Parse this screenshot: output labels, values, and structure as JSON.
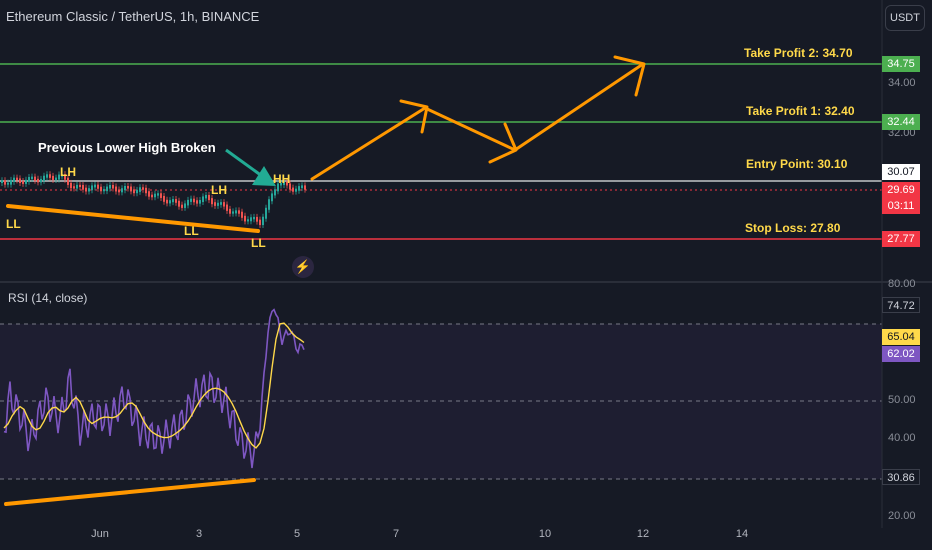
{
  "header": {
    "symbol_title": "Ethereum Classic / TetherUS, 1h, BINANCE",
    "currency_button": "USDT"
  },
  "annotations": {
    "previous_lower_high": "Previous Lower High Broken",
    "take_profit_2": "Take Profit 2: 34.70",
    "take_profit_1": "Take Profit 1: 32.40",
    "entry_point": "Entry Point: 30.10",
    "stop_loss": "Stop Loss: 27.80",
    "swings": [
      "LH",
      "LH",
      "HH",
      "LL",
      "LL",
      "LL"
    ]
  },
  "price_axis": {
    "ticks": [
      "34.00",
      "32.00"
    ],
    "tags": {
      "tp2": "34.75",
      "tp1": "32.44",
      "entry": "30.07",
      "last": "29.69",
      "countdown": "03:11",
      "stop": "27.77"
    }
  },
  "rsi": {
    "title": "RSI (14, close)",
    "ticks": [
      "80.00",
      "50.00",
      "40.00",
      "20.00"
    ],
    "tags": {
      "top": "74.72",
      "rsi": "65.04",
      "ma": "62.02",
      "low": "30.86"
    }
  },
  "time_axis": {
    "labels": [
      "Jun",
      "3",
      "5",
      "7",
      "10",
      "12",
      "14"
    ]
  },
  "colors": {
    "background": "#161a25",
    "take_profit": "#4caf50",
    "stop_loss": "#f23645",
    "arrow": "#ff9800",
    "annotation": "#ffd94a",
    "rsi_line": "#7e57c2",
    "rsi_ma": "#ffd94a",
    "teal_arrow": "#22ab94"
  },
  "icons": [
    "flash-icon"
  ]
}
